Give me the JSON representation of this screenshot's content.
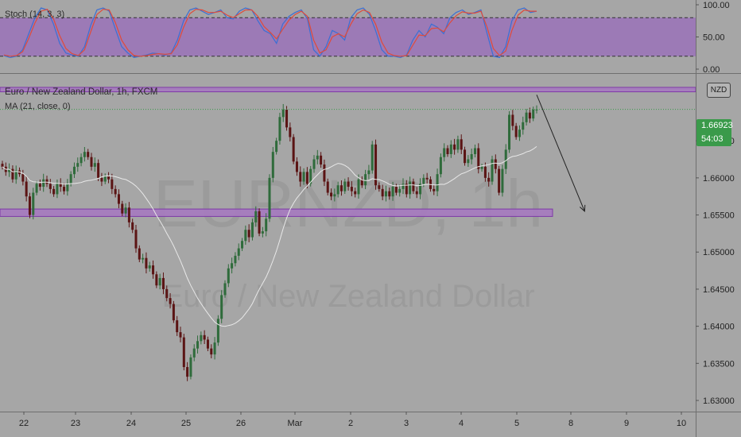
{
  "header": {
    "stoch_label": "Stoch (14, 3, 3)",
    "symbol_label": "Euro / New Zealand Dollar, 1h, FXCM",
    "ma_label": "MA (21, close, 0)",
    "currency_badge": "NZD"
  },
  "watermark": {
    "ticker": "EURNZD, 1h",
    "name": "Euro / New Zealand Dollar"
  },
  "last_price": {
    "value": "1.66923",
    "countdown": "54:03"
  },
  "colors": {
    "background": "#a6a6a6",
    "up_candle": "#2f6b3b",
    "down_candle": "#5b1414",
    "stoch_band": "#9a72b8",
    "stoch_k": "#3b6fd4",
    "stoch_d": "#e04a3a",
    "zone_fill": "#a77ac0",
    "zone_border": "#7a2fa8",
    "ma_line": "#e8e8e8",
    "price_tag": "#3a9a4a"
  },
  "chart_data": [
    {
      "type": "line",
      "name": "Stoch (14, 3, 3)",
      "ylim": [
        0,
        100
      ],
      "y_ticks": [
        "100.00",
        "50.00",
        "0.00"
      ],
      "band": [
        20,
        80
      ],
      "series": [
        {
          "values": [
            21,
            18,
            20,
            30,
            55,
            80,
            95,
            92,
            70,
            40,
            25,
            22,
            20,
            35,
            68,
            92,
            95,
            90,
            62,
            35,
            25,
            18,
            20,
            22,
            25,
            24,
            22,
            25,
            45,
            75,
            92,
            95,
            90,
            85,
            88,
            92,
            80,
            78,
            90,
            95,
            92,
            75,
            60,
            55,
            40,
            70,
            82,
            88,
            92,
            78,
            30,
            20,
            35,
            60,
            55,
            45,
            80,
            92,
            95,
            85,
            60,
            30,
            20,
            20,
            18,
            22,
            45,
            60,
            50,
            70,
            65,
            55,
            80,
            88,
            92,
            85,
            88,
            92,
            55,
            20,
            18,
            35,
            75,
            92,
            95,
            88,
            90
          ]
        },
        {
          "values": [
            22,
            20,
            21,
            27,
            48,
            72,
            90,
            93,
            78,
            52,
            32,
            24,
            21,
            30,
            58,
            85,
            93,
            92,
            72,
            45,
            30,
            21,
            20,
            21,
            23,
            24,
            23,
            24,
            38,
            65,
            86,
            93,
            92,
            88,
            88,
            90,
            84,
            80,
            86,
            92,
            92,
            82,
            66,
            57,
            47,
            62,
            76,
            85,
            90,
            82,
            45,
            25,
            30,
            50,
            55,
            50,
            70,
            86,
            92,
            88,
            70,
            42,
            25,
            21,
            20,
            21,
            37,
            53,
            52,
            63,
            64,
            58,
            72,
            83,
            89,
            87,
            87,
            90,
            65,
            32,
            21,
            28,
            60,
            84,
            92,
            90,
            90
          ]
        }
      ]
    },
    {
      "type": "candlestick",
      "title": "Euro / New Zealand Dollar, 1h, FXCM",
      "x_ticks": [
        "22",
        "23",
        "24",
        "25",
        "26",
        "Mar",
        "2",
        "3",
        "4",
        "5",
        "8",
        "9",
        "10"
      ],
      "y_ticks": [
        "1.66500",
        "1.66000",
        "1.65500",
        "1.65000",
        "1.64500",
        "1.64000",
        "1.63500",
        "1.63000"
      ],
      "ylim": [
        1.6285,
        1.6738
      ],
      "close_path": [
        1.6615,
        1.6608,
        1.6612,
        1.6598,
        1.661,
        1.6605,
        1.6595,
        1.6575,
        1.655,
        1.658,
        1.6592,
        1.6588,
        1.6598,
        1.6592,
        1.6585,
        1.6578,
        1.6592,
        1.6588,
        1.6582,
        1.6592,
        1.6605,
        1.6615,
        1.662,
        1.6628,
        1.6635,
        1.6628,
        1.6615,
        1.662,
        1.66,
        1.6595,
        1.6602,
        1.6598,
        1.6585,
        1.6578,
        1.6565,
        1.6552,
        1.656,
        1.654,
        1.653,
        1.6505,
        1.649,
        1.6492,
        1.6478,
        1.6482,
        1.647,
        1.6455,
        1.6465,
        1.645,
        1.6438,
        1.643,
        1.6408,
        1.6392,
        1.6385,
        1.6345,
        1.6332,
        1.6358,
        1.637,
        1.638,
        1.6388,
        1.6382,
        1.637,
        1.6362,
        1.6378,
        1.641,
        1.6442,
        1.6458,
        1.6478,
        1.6485,
        1.6495,
        1.6505,
        1.6515,
        1.653,
        1.652,
        1.654,
        1.6555,
        1.6525,
        1.6528,
        1.6545,
        1.66,
        1.6635,
        1.665,
        1.6682,
        1.6692,
        1.6668,
        1.6655,
        1.6622,
        1.6608,
        1.6595,
        1.6608,
        1.6592,
        1.6612,
        1.6625,
        1.663,
        1.6618,
        1.6595,
        1.658,
        1.6575,
        1.6578,
        1.659,
        1.6582,
        1.6595,
        1.6588,
        1.6582,
        1.6578,
        1.6598,
        1.659,
        1.6605,
        1.661,
        1.6645,
        1.659,
        1.6585,
        1.6575,
        1.6582,
        1.6575,
        1.6588,
        1.658,
        1.6585,
        1.6592,
        1.6578,
        1.6595,
        1.6582,
        1.6578,
        1.6592,
        1.66,
        1.6598,
        1.6585,
        1.6582,
        1.6605,
        1.6628,
        1.664,
        1.6632,
        1.6645,
        1.6638,
        1.6652,
        1.6638,
        1.662,
        1.6625,
        1.6632,
        1.664,
        1.6612,
        1.6615,
        1.66,
        1.6595,
        1.6625,
        1.6612,
        1.658,
        1.6612,
        1.6638,
        1.6685,
        1.667,
        1.6655,
        1.6665,
        1.6675,
        1.6688,
        1.668,
        1.6692,
        1.6692
      ],
      "ma_label": "MA (21, close, 0)",
      "last_price": 1.66923,
      "zones": [
        {
          "from": 1.6716,
          "to": 1.6722
        },
        {
          "from": 1.6548,
          "to": 1.6558
        }
      ],
      "arrow": {
        "from": [
          156,
          1.6712
        ],
        "to": [
          170,
          1.6555
        ]
      }
    }
  ]
}
